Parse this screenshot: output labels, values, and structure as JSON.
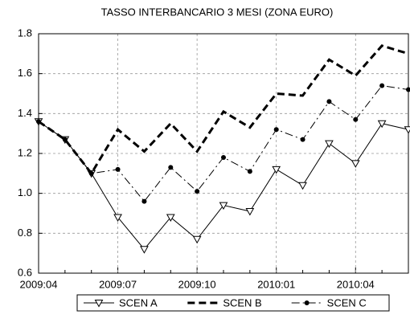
{
  "chart_data": {
    "type": "line",
    "title": "TASSO INTERBANCARIO 3 MESI (ZONA EURO)",
    "categories": [
      "2009:04",
      null,
      null,
      "2009:07",
      null,
      null,
      "2009:10",
      null,
      null,
      "2010:01",
      null,
      null,
      "2010:04",
      null,
      null
    ],
    "series": [
      {
        "name": "SCEN A",
        "color": "#000000",
        "style": "solid",
        "marker": "triangle-down",
        "values": [
          1.36,
          1.27,
          1.1,
          0.88,
          0.72,
          0.88,
          0.77,
          0.94,
          0.91,
          1.12,
          1.04,
          1.25,
          1.15,
          1.35,
          1.32
        ]
      },
      {
        "name": "SCEN B",
        "color": "#000000",
        "style": "thick-dashed",
        "marker": "none",
        "values": [
          1.36,
          1.27,
          1.1,
          1.32,
          1.21,
          1.35,
          1.21,
          1.41,
          1.33,
          1.5,
          1.49,
          1.67,
          1.59,
          1.74,
          1.7
        ]
      },
      {
        "name": "SCEN C",
        "color": "#000000",
        "style": "dash-dot",
        "marker": "circle",
        "values": [
          1.36,
          1.27,
          1.1,
          1.12,
          0.96,
          1.13,
          1.01,
          1.18,
          1.11,
          1.32,
          1.27,
          1.46,
          1.37,
          1.54,
          1.52
        ]
      }
    ],
    "ylim": [
      0.6,
      1.8
    ],
    "yticks": [
      0.6,
      0.8,
      {
        "value": 1,
        "label": "1.0"
      },
      1.2,
      1.4,
      1.6,
      1.8
    ],
    "grid": true,
    "legend": "bottom"
  }
}
